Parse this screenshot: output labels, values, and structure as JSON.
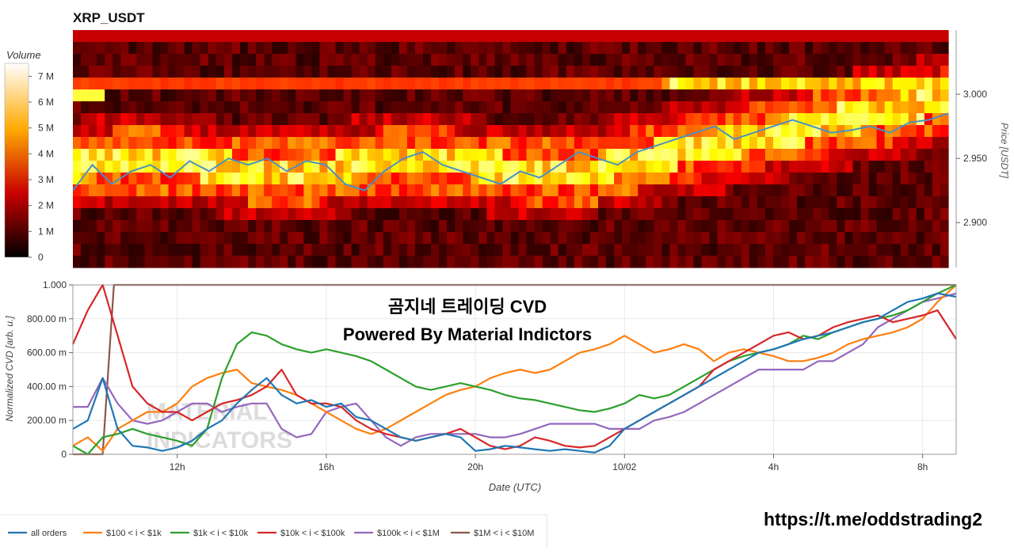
{
  "title": "XRP_USDT",
  "colorbar": {
    "title": "Volume",
    "ticks": [
      "0",
      "1 M",
      "2 M",
      "3 M",
      "4 M",
      "5 M",
      "6 M",
      "7 M"
    ]
  },
  "heatmap": {
    "y_axis_label": "Price [USDT]",
    "y_ticks": [
      "2.900",
      "2.950",
      "3.000"
    ]
  },
  "overlay": {
    "line1": "곰지네 트레이딩 CVD",
    "line2": "Powered By Material Indictors"
  },
  "watermark": {
    "line1": "MATERIAL",
    "line2": "INDICATORS"
  },
  "url": "https://t.me/oddstrading2",
  "colors": {
    "all_orders": "#1f77b4",
    "s100_1k": "#ff7f0e",
    "s1k_10k": "#2ca02c",
    "s10k_100k": "#d62728",
    "s100k_1m": "#9467bd",
    "s1m_10m": "#8c564b",
    "price_line": "#4a90c4"
  },
  "chart_data": [
    {
      "type": "heatmap",
      "title": "XRP_USDT",
      "ylabel": "Price [USDT]",
      "y_ticks": [
        2.9,
        2.95,
        3.0
      ],
      "ylim": [
        2.865,
        3.05
      ],
      "colorbar_range": [
        0,
        7.5
      ],
      "colorbar_unit": "M",
      "price_series": [
        2.925,
        2.945,
        2.93,
        2.94,
        2.945,
        2.935,
        2.948,
        2.94,
        2.95,
        2.945,
        2.95,
        2.94,
        2.948,
        2.945,
        2.93,
        2.925,
        2.94,
        2.95,
        2.955,
        2.945,
        2.94,
        2.935,
        2.93,
        2.94,
        2.935,
        2.945,
        2.955,
        2.95,
        2.945,
        2.955,
        2.96,
        2.965,
        2.97,
        2.975,
        2.965,
        2.97,
        2.975,
        2.98,
        2.975,
        2.97,
        2.972,
        2.975,
        2.97,
        2.978,
        2.98,
        2.985
      ]
    },
    {
      "type": "line",
      "xlabel": "Date (UTC)",
      "ylabel": "Normalized CVD [arb. u.]",
      "x_ticks": [
        "12h",
        "16h",
        "20h",
        "10/02",
        "4h",
        "8h"
      ],
      "y_ticks": [
        "0",
        "200.00 m",
        "400.00 m",
        "600.00 m",
        "800.00 m",
        "1.000"
      ],
      "xlim": [
        9.2,
        32.9
      ],
      "ylim": [
        0,
        1
      ],
      "x_tick_values": [
        12,
        16,
        20,
        24,
        28,
        32
      ],
      "x_unit": "hours since 10/01 00:00 UTC",
      "series": [
        {
          "name": "all orders",
          "x": [
            9.2,
            9.6,
            10.0,
            10.4,
            10.8,
            11.2,
            11.6,
            12.0,
            12.4,
            12.8,
            13.2,
            13.6,
            14.0,
            14.4,
            14.8,
            15.2,
            15.6,
            16.0,
            16.4,
            16.8,
            17.2,
            17.6,
            18.0,
            18.4,
            18.8,
            19.2,
            19.6,
            20.0,
            20.4,
            20.8,
            21.2,
            21.6,
            22.0,
            22.4,
            22.8,
            23.2,
            23.6,
            24.0,
            24.4,
            24.8,
            25.2,
            25.6,
            26.0,
            26.4,
            26.8,
            27.2,
            27.6,
            28.0,
            28.4,
            28.8,
            29.2,
            29.6,
            30.0,
            30.4,
            30.8,
            31.2,
            31.6,
            32.0,
            32.4,
            32.9
          ],
          "values": [
            0.15,
            0.2,
            0.45,
            0.15,
            0.05,
            0.04,
            0.02,
            0.04,
            0.08,
            0.15,
            0.2,
            0.3,
            0.38,
            0.45,
            0.35,
            0.3,
            0.32,
            0.28,
            0.3,
            0.22,
            0.2,
            0.15,
            0.1,
            0.08,
            0.1,
            0.12,
            0.1,
            0.02,
            0.03,
            0.05,
            0.04,
            0.03,
            0.02,
            0.03,
            0.02,
            0.01,
            0.05,
            0.15,
            0.2,
            0.25,
            0.3,
            0.35,
            0.4,
            0.45,
            0.5,
            0.55,
            0.6,
            0.62,
            0.65,
            0.68,
            0.7,
            0.72,
            0.75,
            0.78,
            0.8,
            0.85,
            0.9,
            0.92,
            0.95,
            0.93
          ]
        },
        {
          "name": "$100 < i < $1k",
          "x": [
            9.2,
            9.6,
            10.0,
            10.4,
            10.8,
            11.2,
            11.6,
            12.0,
            12.4,
            12.8,
            13.2,
            13.6,
            14.0,
            14.4,
            14.8,
            15.2,
            15.6,
            16.0,
            16.4,
            16.8,
            17.2,
            17.6,
            18.0,
            18.4,
            18.8,
            19.2,
            19.6,
            20.0,
            20.4,
            20.8,
            21.2,
            21.6,
            22.0,
            22.4,
            22.8,
            23.2,
            23.6,
            24.0,
            24.4,
            24.8,
            25.2,
            25.6,
            26.0,
            26.4,
            26.8,
            27.2,
            27.6,
            28.0,
            28.4,
            28.8,
            29.2,
            29.6,
            30.0,
            30.4,
            30.8,
            31.2,
            31.6,
            32.0,
            32.4,
            32.9
          ],
          "values": [
            0.05,
            0.1,
            0.02,
            0.15,
            0.2,
            0.25,
            0.25,
            0.3,
            0.4,
            0.45,
            0.48,
            0.5,
            0.42,
            0.4,
            0.38,
            0.35,
            0.3,
            0.25,
            0.2,
            0.15,
            0.12,
            0.15,
            0.2,
            0.25,
            0.3,
            0.35,
            0.38,
            0.4,
            0.45,
            0.48,
            0.5,
            0.48,
            0.5,
            0.55,
            0.6,
            0.62,
            0.65,
            0.7,
            0.65,
            0.6,
            0.62,
            0.65,
            0.62,
            0.55,
            0.6,
            0.62,
            0.6,
            0.58,
            0.55,
            0.55,
            0.57,
            0.6,
            0.65,
            0.68,
            0.7,
            0.72,
            0.75,
            0.8,
            0.9,
            1.0
          ]
        },
        {
          "name": "$1k < i < $10k",
          "x": [
            9.2,
            9.6,
            10.0,
            10.4,
            10.8,
            11.2,
            11.6,
            12.0,
            12.4,
            12.8,
            13.2,
            13.6,
            14.0,
            14.4,
            14.8,
            15.2,
            15.6,
            16.0,
            16.4,
            16.8,
            17.2,
            17.6,
            18.0,
            18.4,
            18.8,
            19.2,
            19.6,
            20.0,
            20.4,
            20.8,
            21.2,
            21.6,
            22.0,
            22.4,
            22.8,
            23.2,
            23.6,
            24.0,
            24.4,
            24.8,
            25.2,
            25.6,
            26.0,
            26.4,
            26.8,
            27.2,
            27.6,
            28.0,
            28.4,
            28.8,
            29.2,
            29.6,
            30.0,
            30.4,
            30.8,
            31.2,
            31.6,
            32.0,
            32.4,
            32.9
          ],
          "values": [
            0.05,
            0.0,
            0.1,
            0.12,
            0.15,
            0.12,
            0.1,
            0.08,
            0.05,
            0.15,
            0.45,
            0.65,
            0.72,
            0.7,
            0.65,
            0.62,
            0.6,
            0.62,
            0.6,
            0.58,
            0.55,
            0.5,
            0.45,
            0.4,
            0.38,
            0.4,
            0.42,
            0.4,
            0.38,
            0.35,
            0.33,
            0.32,
            0.3,
            0.28,
            0.26,
            0.25,
            0.27,
            0.3,
            0.35,
            0.33,
            0.35,
            0.4,
            0.45,
            0.5,
            0.55,
            0.58,
            0.6,
            0.62,
            0.65,
            0.7,
            0.68,
            0.72,
            0.75,
            0.78,
            0.8,
            0.82,
            0.85,
            0.9,
            0.95,
            1.0
          ]
        },
        {
          "name": "$10k < i < $100k",
          "x": [
            9.2,
            9.6,
            10.0,
            10.4,
            10.8,
            11.2,
            11.6,
            12.0,
            12.4,
            12.8,
            13.2,
            13.6,
            14.0,
            14.4,
            14.8,
            15.2,
            15.6,
            16.0,
            16.4,
            16.8,
            17.2,
            17.6,
            18.0,
            18.4,
            18.8,
            19.2,
            19.6,
            20.0,
            20.4,
            20.8,
            21.2,
            21.6,
            22.0,
            22.4,
            22.8,
            23.2,
            23.6,
            24.0,
            24.4,
            24.8,
            25.2,
            25.6,
            26.0,
            26.4,
            26.8,
            27.2,
            27.6,
            28.0,
            28.4,
            28.8,
            29.2,
            29.6,
            30.0,
            30.4,
            30.8,
            31.2,
            31.6,
            32.0,
            32.4,
            32.9
          ],
          "values": [
            0.65,
            0.85,
            1.0,
            0.7,
            0.4,
            0.3,
            0.25,
            0.25,
            0.2,
            0.25,
            0.3,
            0.32,
            0.35,
            0.4,
            0.5,
            0.35,
            0.3,
            0.3,
            0.28,
            0.2,
            0.15,
            0.12,
            0.1,
            0.08,
            0.1,
            0.12,
            0.15,
            0.1,
            0.05,
            0.03,
            0.05,
            0.1,
            0.08,
            0.05,
            0.04,
            0.05,
            0.1,
            0.15,
            0.2,
            0.25,
            0.3,
            0.35,
            0.4,
            0.5,
            0.55,
            0.6,
            0.65,
            0.7,
            0.72,
            0.68,
            0.7,
            0.75,
            0.78,
            0.8,
            0.82,
            0.78,
            0.8,
            0.82,
            0.85,
            0.68
          ]
        },
        {
          "name": "$100k < i < $1M",
          "x": [
            9.2,
            9.6,
            10.0,
            10.4,
            10.8,
            11.2,
            11.6,
            12.0,
            12.4,
            12.8,
            13.2,
            13.6,
            14.0,
            14.4,
            14.8,
            15.2,
            15.6,
            16.0,
            16.4,
            16.8,
            17.2,
            17.6,
            18.0,
            18.4,
            18.8,
            19.2,
            19.6,
            20.0,
            20.4,
            20.8,
            21.2,
            21.6,
            22.0,
            22.4,
            22.8,
            23.2,
            23.6,
            24.0,
            24.4,
            24.8,
            25.2,
            25.6,
            26.0,
            26.4,
            26.8,
            27.2,
            27.6,
            28.0,
            28.4,
            28.8,
            29.2,
            29.6,
            30.0,
            30.4,
            30.8,
            31.2,
            31.6,
            32.0,
            32.4,
            32.9
          ],
          "values": [
            0.28,
            0.28,
            0.45,
            0.3,
            0.2,
            0.18,
            0.2,
            0.25,
            0.3,
            0.3,
            0.25,
            0.28,
            0.3,
            0.3,
            0.15,
            0.1,
            0.12,
            0.25,
            0.28,
            0.3,
            0.2,
            0.1,
            0.05,
            0.1,
            0.12,
            0.12,
            0.12,
            0.12,
            0.1,
            0.1,
            0.12,
            0.15,
            0.18,
            0.18,
            0.18,
            0.18,
            0.15,
            0.15,
            0.15,
            0.2,
            0.22,
            0.25,
            0.3,
            0.35,
            0.4,
            0.45,
            0.5,
            0.5,
            0.5,
            0.5,
            0.55,
            0.55,
            0.6,
            0.65,
            0.75,
            0.8,
            0.85,
            0.9,
            0.92,
            0.95
          ]
        },
        {
          "name": "$1M < i < $10M",
          "x": [
            9.2,
            9.6,
            10.0,
            10.3,
            10.6,
            32.9
          ],
          "values": [
            0.0,
            0.0,
            0.0,
            1.0,
            1.0,
            1.0
          ]
        }
      ]
    }
  ]
}
